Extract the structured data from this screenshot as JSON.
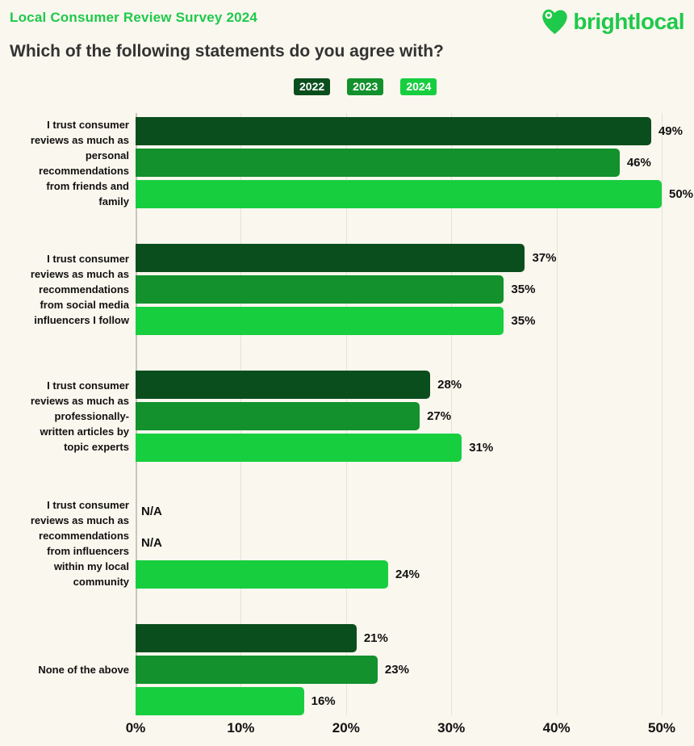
{
  "header": {
    "survey_label": "Local Consumer Review Survey 2024",
    "question": "Which of the following statements do you agree with?",
    "brand": "brightlocal"
  },
  "colors": {
    "background": "#FAF7EE",
    "accent_green": "#1FC94B",
    "heading_text": "#333333",
    "series_2022": "#0B4E1D",
    "series_2023": "#12912C",
    "series_2024": "#17CE3F",
    "gridline": "#E5E2D8",
    "axis_line": "#C9C6BC",
    "label_text": "#111111"
  },
  "legend": [
    {
      "label": "2022",
      "color": "#0B4E1D"
    },
    {
      "label": "2023",
      "color": "#12912C"
    },
    {
      "label": "2024",
      "color": "#17CE3F"
    }
  ],
  "chart_data": {
    "type": "bar",
    "orientation": "horizontal",
    "title": "Which of the following statements do you agree with?",
    "categories": [
      "I trust consumer\nreviews as much as\npersonal\nrecommendations\nfrom friends and\nfamily",
      "I trust consumer\nreviews as much as\nrecommendations\nfrom social media\ninfluencers I follow",
      "I trust consumer\nreviews as much as\nprofessionally-\nwritten articles by\ntopic experts",
      "I trust consumer\nreviews as much as\nrecommendations\nfrom influencers\nwithin my local\ncommunity",
      "None of the above"
    ],
    "series": [
      {
        "name": "2022",
        "color": "#0B4E1D",
        "values": [
          49,
          37,
          28,
          null,
          21
        ]
      },
      {
        "name": "2023",
        "color": "#12912C",
        "values": [
          46,
          35,
          27,
          null,
          23
        ]
      },
      {
        "name": "2024",
        "color": "#17CE3F",
        "values": [
          50,
          35,
          31,
          24,
          16
        ]
      }
    ],
    "value_suffix": "%",
    "na_label": "N/A",
    "xlim": [
      0,
      50
    ],
    "x_ticks": [
      "0%",
      "10%",
      "20%",
      "30%",
      "40%",
      "50%"
    ],
    "grid": "vertical",
    "legend_position": "top-center"
  }
}
